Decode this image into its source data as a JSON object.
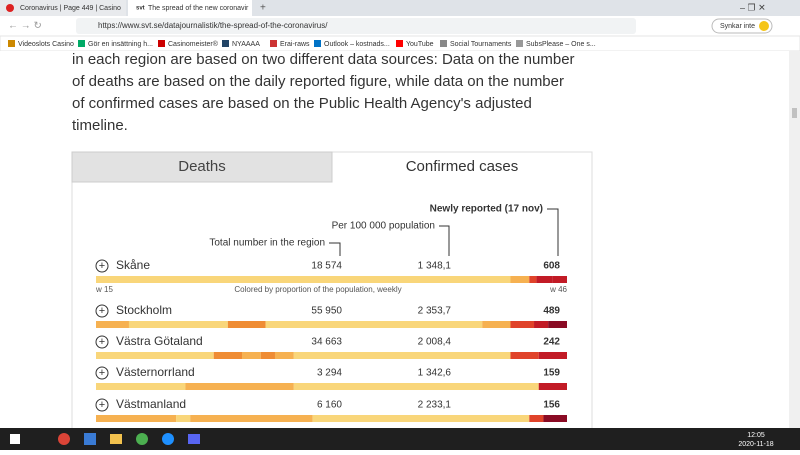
{
  "browser": {
    "tabs": [
      "Coronavirus | Page 449 | Casino",
      "The spread of the new coronavir"
    ],
    "url": "https://www.svt.se/datajournalistik/the-spread-of-the-coronavirus/",
    "sync_button": "Synkar inte",
    "bookmarks": [
      "Videoslots Casino",
      "Gör en insättning h...",
      "Casinomeister®",
      "NYAAAA",
      "Erai-raws",
      "Outlook – kostnads...",
      "YouTube",
      "Social Tournaments",
      "SubsPlease – One s..."
    ]
  },
  "article": {
    "paragraph_lines": [
      "in each region are based on two different data sources: Data on the number",
      "of deaths are based on the daily reported figure, while data on the number",
      "of confirmed cases are based on the Public Health Agency's adjusted",
      "timeline."
    ]
  },
  "widget": {
    "tabs": [
      "Deaths",
      "Confirmed cases"
    ],
    "headers": {
      "newly_reported": "Newly reported (17 nov)",
      "per_100k": "Per 100 000 population",
      "total": "Total number in the region"
    },
    "scale": {
      "start": "w 15",
      "caption": "Colored by proportion of the population, weekly",
      "end": "w 46"
    },
    "rows": [
      [
        "Skåne",
        "18 574",
        "1 348,1",
        "608"
      ],
      [
        "Stockholm",
        "55 950",
        "2 353,7",
        "489"
      ],
      [
        "Västra Götaland",
        "34 663",
        "2 008,4",
        "242"
      ],
      [
        "Västernorrland",
        "3 294",
        "1 342,6",
        "159"
      ],
      [
        "Västmanland",
        "6 160",
        "2 233,1",
        "156"
      ]
    ]
  },
  "taskbar": {
    "time": "12:05",
    "date": "2020-11-18"
  }
}
